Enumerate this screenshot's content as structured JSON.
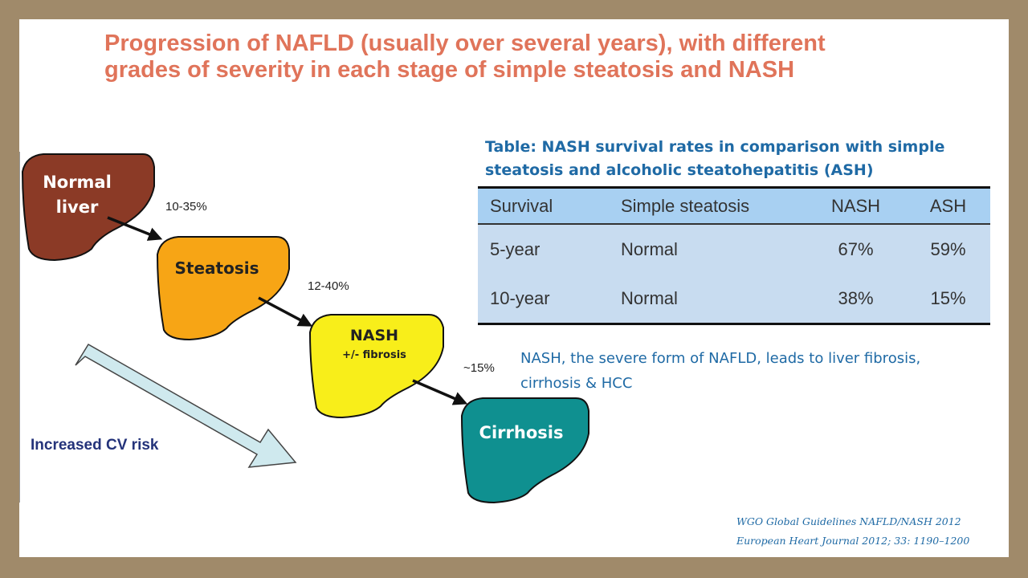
{
  "title": {
    "line1": "Progression of NAFLD (usually over several years), with different",
    "line2": "grades of severity in each stage of simple steatosis and NASH"
  },
  "stages": [
    {
      "line1": "Normal",
      "line2": "liver",
      "color": "#8b3a26"
    },
    {
      "line1": "Steatosis",
      "color": "#f7a515"
    },
    {
      "line1": "NASH",
      "line2": "+/- fibrosis",
      "color": "#f8ee1a"
    },
    {
      "line1": "Cirrhosis",
      "color": "#0f9090"
    }
  ],
  "transitions": [
    "10-35%",
    "12-40%",
    "~15%"
  ],
  "cv_risk": {
    "label": "Increased CV risk",
    "label_color": "#24337a",
    "arrow_color": "#cfe9ee"
  },
  "table": {
    "caption_line1": "Table: NASH survival rates in comparison with simple",
    "caption_line2": "steatosis and alcoholic steatohepatitis  (ASH)",
    "headers": [
      "Survival",
      "Simple steatosis",
      "NASH",
      "ASH"
    ],
    "rows": [
      [
        "5-year",
        "Normal",
        "67%",
        "59%"
      ],
      [
        "10-year",
        "Normal",
        "38%",
        "15%"
      ]
    ]
  },
  "note": {
    "line1": "NASH, the severe form of NAFLD, leads to liver fibrosis,",
    "line2": "cirrhosis & HCC"
  },
  "references": [
    "WGO Global Guidelines NAFLD/NASH 2012",
    "European Heart Journal 2012; 33: 1190–1200"
  ],
  "colors": {
    "title": "#e0745a",
    "accent_text": "#1f6aa5",
    "frame": "#a08a6a"
  }
}
